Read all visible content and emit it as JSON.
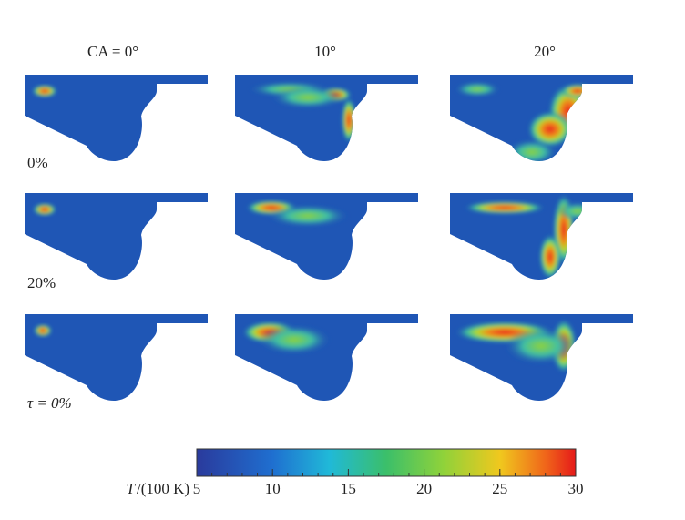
{
  "columns": [
    "CA = 0°",
    "10°",
    "20°"
  ],
  "rows": [
    "0%",
    "20%",
    "τ = 0%"
  ],
  "colorbar": {
    "label_symbol": "T",
    "label_unit": "/(100 K)",
    "lim": [
      5,
      30
    ],
    "ticks": [
      5,
      10,
      15,
      20,
      25,
      30
    ]
  }
}
